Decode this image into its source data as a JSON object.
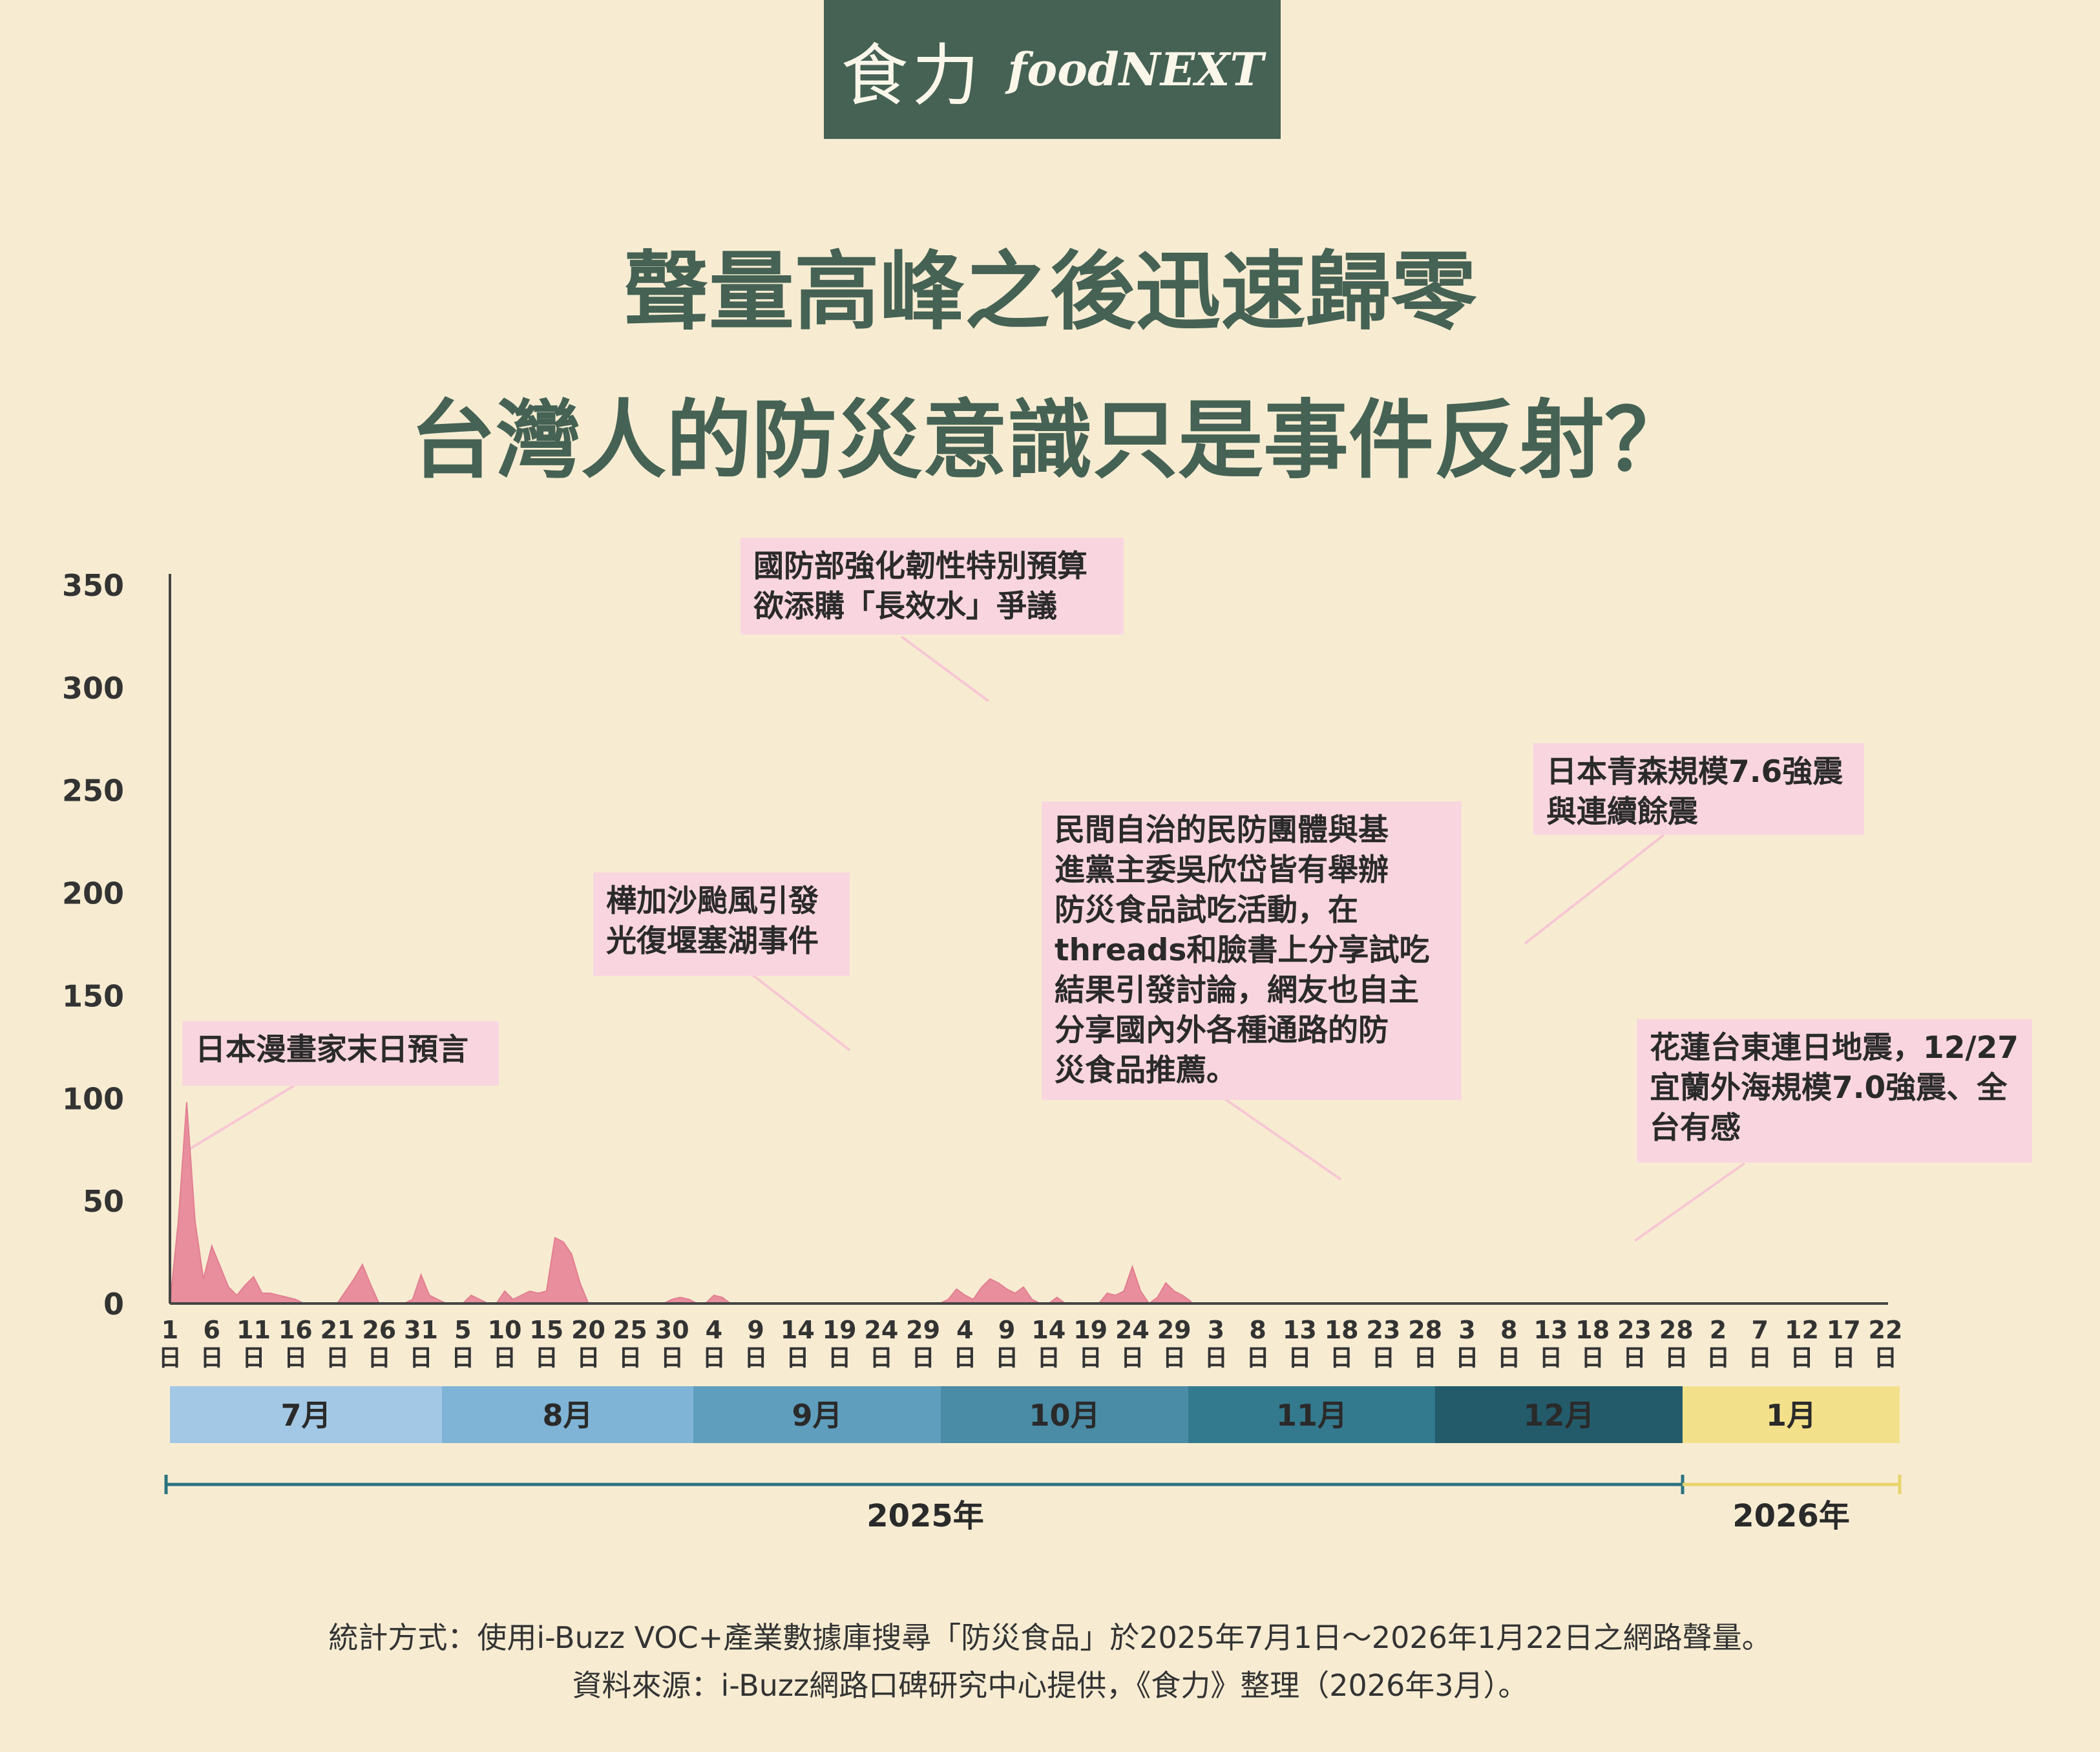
{
  "logo": {
    "cn": "食力",
    "en": "foodNEXT"
  },
  "title": {
    "line1": "聲量高峰之後迅速歸零",
    "line2": "台灣人的防災意識只是事件反射？"
  },
  "colors": {
    "area_fill": "#e88e9d",
    "area_stroke": "#e27f90",
    "brand_green": "#456254",
    "annotation_bg": "#f9d6df"
  },
  "chart_data": {
    "type": "area",
    "xlabel": "",
    "ylabel": "",
    "ylim": [
      0,
      350
    ],
    "y_ticks": [
      0,
      50,
      100,
      150,
      200,
      250,
      300,
      350
    ],
    "grid": false,
    "x_start": "2025-07-01",
    "x_end": "2026-01-22",
    "x_tick_labels": [
      {
        "day": "1",
        "date": "2025-07-01"
      },
      {
        "day": "6",
        "date": "2025-07-06"
      },
      {
        "day": "11",
        "date": "2025-07-11"
      },
      {
        "day": "16",
        "date": "2025-07-16"
      },
      {
        "day": "21",
        "date": "2025-07-21"
      },
      {
        "day": "26",
        "date": "2025-07-26"
      },
      {
        "day": "31",
        "date": "2025-07-31"
      },
      {
        "day": "5",
        "date": "2025-08-05"
      },
      {
        "day": "10",
        "date": "2025-08-10"
      },
      {
        "day": "15",
        "date": "2025-08-15"
      },
      {
        "day": "20",
        "date": "2025-08-20"
      },
      {
        "day": "25",
        "date": "2025-08-25"
      },
      {
        "day": "30",
        "date": "2025-08-30"
      },
      {
        "day": "4",
        "date": "2025-09-04"
      },
      {
        "day": "9",
        "date": "2025-09-09"
      },
      {
        "day": "14",
        "date": "2025-09-14"
      },
      {
        "day": "19",
        "date": "2025-09-19"
      },
      {
        "day": "24",
        "date": "2025-09-24"
      },
      {
        "day": "29",
        "date": "2025-09-29"
      },
      {
        "day": "4",
        "date": "2025-10-04"
      },
      {
        "day": "9",
        "date": "2025-10-09"
      },
      {
        "day": "14",
        "date": "2025-10-14"
      },
      {
        "day": "19",
        "date": "2025-10-19"
      },
      {
        "day": "24",
        "date": "2025-10-24"
      },
      {
        "day": "29",
        "date": "2025-10-29"
      },
      {
        "day": "3",
        "date": "2025-11-03"
      },
      {
        "day": "8",
        "date": "2025-11-08"
      },
      {
        "day": "13",
        "date": "2025-11-13"
      },
      {
        "day": "18",
        "date": "2025-11-18"
      },
      {
        "day": "23",
        "date": "2025-11-23"
      },
      {
        "day": "28",
        "date": "2025-11-28"
      },
      {
        "day": "3",
        "date": "2025-12-03"
      },
      {
        "day": "8",
        "date": "2025-12-08"
      },
      {
        "day": "13",
        "date": "2025-12-13"
      },
      {
        "day": "18",
        "date": "2025-12-18"
      },
      {
        "day": "23",
        "date": "2025-12-23"
      },
      {
        "day": "28",
        "date": "2025-12-28"
      },
      {
        "day": "2",
        "date": "2026-01-02"
      },
      {
        "day": "7",
        "date": "2026-01-07"
      },
      {
        "day": "12",
        "date": "2026-01-12"
      },
      {
        "day": "17",
        "date": "2026-01-17"
      },
      {
        "day": "22",
        "date": "2026-01-22"
      }
    ],
    "x_tick_unit": "日",
    "series": [
      {
        "points": [
          [
            "2025-07-01",
            0
          ],
          [
            "2025-07-02",
            40
          ],
          [
            "2025-07-03",
            98
          ],
          [
            "2025-07-04",
            40
          ],
          [
            "2025-07-05",
            12
          ],
          [
            "2025-07-06",
            28
          ],
          [
            "2025-07-07",
            18
          ],
          [
            "2025-07-08",
            8
          ],
          [
            "2025-07-09",
            4
          ],
          [
            "2025-07-10",
            9
          ],
          [
            "2025-07-11",
            13
          ],
          [
            "2025-07-12",
            5
          ],
          [
            "2025-07-13",
            5
          ],
          [
            "2025-07-14",
            4
          ],
          [
            "2025-07-15",
            3
          ],
          [
            "2025-07-16",
            2
          ],
          [
            "2025-07-17",
            0
          ],
          [
            "2025-07-18",
            0
          ],
          [
            "2025-07-19",
            0
          ],
          [
            "2025-07-20",
            0
          ],
          [
            "2025-07-21",
            0
          ],
          [
            "2025-07-22",
            6
          ],
          [
            "2025-07-23",
            12
          ],
          [
            "2025-07-24",
            19
          ],
          [
            "2025-07-25",
            9
          ],
          [
            "2025-07-26",
            0
          ],
          [
            "2025-07-27",
            0
          ],
          [
            "2025-07-28",
            0
          ],
          [
            "2025-07-29",
            0
          ],
          [
            "2025-07-30",
            2
          ],
          [
            "2025-07-31",
            14
          ],
          [
            "2025-08-01",
            4
          ],
          [
            "2025-08-02",
            2
          ],
          [
            "2025-08-03",
            0
          ],
          [
            "2025-08-04",
            0
          ],
          [
            "2025-08-05",
            0
          ],
          [
            "2025-08-06",
            4
          ],
          [
            "2025-08-07",
            2
          ],
          [
            "2025-08-08",
            0
          ],
          [
            "2025-08-09",
            0
          ],
          [
            "2025-08-10",
            6
          ],
          [
            "2025-08-11",
            2
          ],
          [
            "2025-08-12",
            4
          ],
          [
            "2025-08-13",
            6
          ],
          [
            "2025-08-14",
            5
          ],
          [
            "2025-08-15",
            6
          ],
          [
            "2025-08-16",
            32
          ],
          [
            "2025-08-17",
            30
          ],
          [
            "2025-08-18",
            24
          ],
          [
            "2025-08-19",
            10
          ],
          [
            "2025-08-20",
            0
          ],
          [
            "2025-08-21",
            0
          ],
          [
            "2025-08-22",
            0
          ],
          [
            "2025-08-23",
            0
          ],
          [
            "2025-08-24",
            0
          ],
          [
            "2025-08-25",
            0
          ],
          [
            "2025-08-26",
            0
          ],
          [
            "2025-08-27",
            0
          ],
          [
            "2025-08-28",
            0
          ],
          [
            "2025-08-29",
            0
          ],
          [
            "2025-08-30",
            2
          ],
          [
            "2025-08-31",
            3
          ],
          [
            "2025-09-01",
            2
          ],
          [
            "2025-09-02",
            0
          ],
          [
            "2025-09-03",
            0
          ],
          [
            "2025-09-04",
            4
          ],
          [
            "2025-09-05",
            3
          ],
          [
            "2025-09-06",
            0
          ],
          [
            "2025-09-07",
            0
          ],
          [
            "2025-09-08",
            0
          ],
          [
            "2025-09-09",
            0
          ],
          [
            "2025-09-10",
            0
          ],
          [
            "2025-09-11",
            0
          ],
          [
            "2025-09-12",
            0
          ],
          [
            "2025-09-13",
            0
          ],
          [
            "2025-09-14",
            0
          ],
          [
            "2025-09-15",
            0
          ],
          [
            "2025-09-16",
            0
          ],
          [
            "2025-09-17",
            0
          ],
          [
            "2025-09-18",
            0
          ],
          [
            "2025-09-19",
            0
          ],
          [
            "2025-09-20",
            0
          ],
          [
            "2025-09-21",
            0
          ],
          [
            "2025-09-22",
            0
          ],
          [
            "2025-09-23",
            0
          ],
          [
            "2025-09-24",
            0
          ],
          [
            "2025-09-25",
            0
          ],
          [
            "2025-09-26",
            0
          ],
          [
            "2025-09-27",
            0
          ],
          [
            "2025-09-28",
            0
          ],
          [
            "2025-09-29",
            0
          ],
          [
            "2025-09-30",
            0
          ],
          [
            "2025-10-01",
            0
          ],
          [
            "2025-10-02",
            2
          ],
          [
            "2025-10-03",
            7
          ],
          [
            "2025-10-04",
            4
          ],
          [
            "2025-10-05",
            2
          ],
          [
            "2025-10-06",
            8
          ],
          [
            "2025-10-07",
            12
          ],
          [
            "2025-10-08",
            10
          ],
          [
            "2025-10-09",
            7
          ],
          [
            "2025-10-10",
            5
          ],
          [
            "2025-10-11",
            8
          ],
          [
            "2025-10-12",
            2
          ],
          [
            "2025-10-13",
            0
          ],
          [
            "2025-10-14",
            0
          ],
          [
            "2025-10-15",
            3
          ],
          [
            "2025-10-16",
            0
          ],
          [
            "2025-10-17",
            0
          ],
          [
            "2025-10-18",
            0
          ],
          [
            "2025-10-19",
            0
          ],
          [
            "2025-10-20",
            0
          ],
          [
            "2025-10-21",
            5
          ],
          [
            "2025-10-22",
            4
          ],
          [
            "2025-10-23",
            6
          ],
          [
            "2025-10-24",
            18
          ],
          [
            "2025-10-25",
            6
          ],
          [
            "2025-10-26",
            0
          ],
          [
            "2025-10-27",
            3
          ],
          [
            "2025-10-28",
            10
          ],
          [
            "2025-10-29",
            6
          ],
          [
            "2025-10-30",
            4
          ],
          [
            "2025-10-31",
            1
          ]
        ]
      }
    ],
    "months": [
      "7月",
      "8月",
      "9月",
      "10月",
      "11月",
      "12月",
      "1月"
    ],
    "years": [
      "2025年",
      "2026年"
    ]
  },
  "annotations": [
    {
      "text": "日本漫畫家末日預言"
    },
    {
      "text": "樺加沙颱風引發\n光復堰塞湖事件"
    },
    {
      "text": "國防部強化韌性特別預算\n欲添購「長效水」爭議"
    },
    {
      "text": "民間自治的民防團體與基\n進黨主委吳欣岱皆有舉辦\n防災食品試吃活動，在\nthreads和臉書上分享試吃\n結果引發討論，網友也自主\n分享國內外各種通路的防\n災食品推薦。"
    },
    {
      "text": "日本青森規模7.6強震\n與連續餘震"
    },
    {
      "text": "花蓮台東連日地震，12/27\n宜蘭外海規模7.0強震、全\n台有感"
    }
  ],
  "footer": {
    "line1": "統計方式：使用i-Buzz VOC+產業數據庫搜尋「防災食品」於2025年7月1日～2026年1月22日之網路聲量。",
    "line2": "資料來源：i-Buzz網路口碑研究中心提供，《食力》整理（2026年3月）。"
  }
}
